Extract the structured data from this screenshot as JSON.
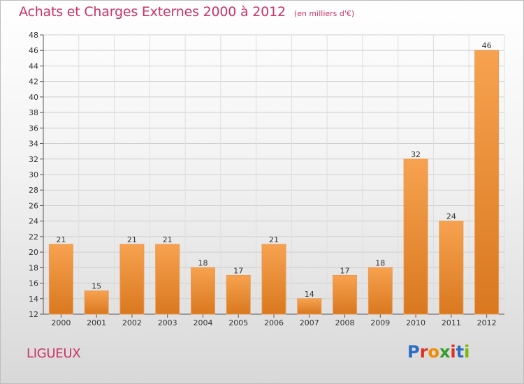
{
  "title": "Achats et Charges Externes 2000 à 2012",
  "unit": "(en milliers d'€)",
  "commune": "LIGUEUX",
  "logo": {
    "text": "Proxiti",
    "letters": [
      "P",
      "r",
      "o",
      "x",
      "i",
      "t",
      "i"
    ],
    "colors": [
      "#2b6cc4",
      "#e0301e",
      "#f08a00",
      "#2f9e2f",
      "#e0301e",
      "#2b6cc4",
      "#7ab800"
    ]
  },
  "colors": {
    "title": "#cc3366",
    "bar_top": "#f7a250",
    "bar_bottom": "#d9781f"
  },
  "chart_data": {
    "type": "bar",
    "title": "Achats et Charges Externes 2000 à 2012",
    "subtitle": "(en milliers d'€)",
    "categories": [
      "2000",
      "2001",
      "2002",
      "2003",
      "2004",
      "2005",
      "2006",
      "2007",
      "2008",
      "2009",
      "2010",
      "2011",
      "2012"
    ],
    "values": [
      21,
      15,
      21,
      21,
      18,
      17,
      21,
      14,
      17,
      18,
      32,
      24,
      46
    ],
    "ylim": [
      12,
      48
    ],
    "yticks": [
      12,
      14,
      16,
      18,
      20,
      22,
      24,
      26,
      28,
      30,
      32,
      34,
      36,
      38,
      40,
      42,
      44,
      46,
      48
    ],
    "grid": true,
    "legend": "none"
  }
}
